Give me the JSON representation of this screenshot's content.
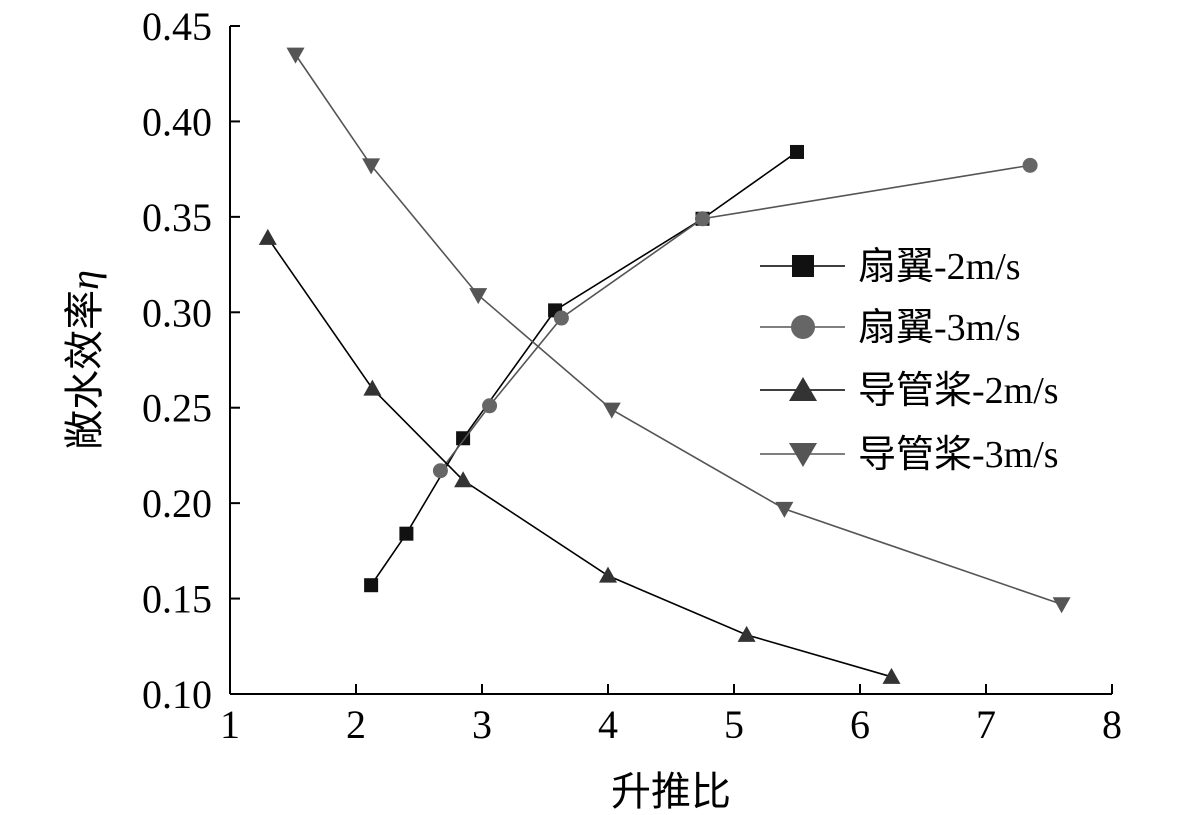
{
  "chart_data": {
    "type": "line",
    "title": "",
    "xlabel": "升推比",
    "ylabel": "敞水效率",
    "ylabel_symbol": "η",
    "xlim": [
      1,
      8
    ],
    "ylim": [
      0.1,
      0.45
    ],
    "xticks": [
      1,
      2,
      3,
      4,
      5,
      6,
      7,
      8
    ],
    "yticks": [
      0.1,
      0.15,
      0.2,
      0.25,
      0.3,
      0.35,
      0.4,
      0.45
    ],
    "ytick_labels": [
      "0.10",
      "0.15",
      "0.20",
      "0.25",
      "0.30",
      "0.35",
      "0.40",
      "0.45"
    ],
    "grid": false,
    "legend_position": "right",
    "series": [
      {
        "name": "扇翼-2m/s",
        "marker": "square",
        "color": "#111111",
        "line_color": "#000000",
        "x": [
          2.12,
          2.4,
          2.85,
          3.58,
          4.75,
          5.5
        ],
        "y": [
          0.157,
          0.184,
          0.234,
          0.301,
          0.349,
          0.384
        ]
      },
      {
        "name": "扇翼-3m/s",
        "marker": "circle",
        "color": "#666666",
        "line_color": "#555555",
        "x": [
          2.67,
          3.06,
          3.63,
          4.75,
          7.35
        ],
        "y": [
          0.217,
          0.251,
          0.297,
          0.349,
          0.377
        ]
      },
      {
        "name": "导管桨-2m/s",
        "marker": "triangle-up",
        "color": "#333333",
        "line_color": "#000000",
        "x": [
          1.3,
          2.13,
          2.85,
          4.0,
          5.1,
          6.25
        ],
        "y": [
          0.339,
          0.26,
          0.212,
          0.162,
          0.131,
          0.109
        ]
      },
      {
        "name": "导管桨-3m/s",
        "marker": "triangle-down",
        "color": "#555555",
        "line_color": "#555555",
        "x": [
          1.52,
          2.12,
          2.97,
          4.03,
          5.4,
          7.6
        ],
        "y": [
          0.435,
          0.377,
          0.309,
          0.249,
          0.197,
          0.147
        ]
      }
    ]
  }
}
